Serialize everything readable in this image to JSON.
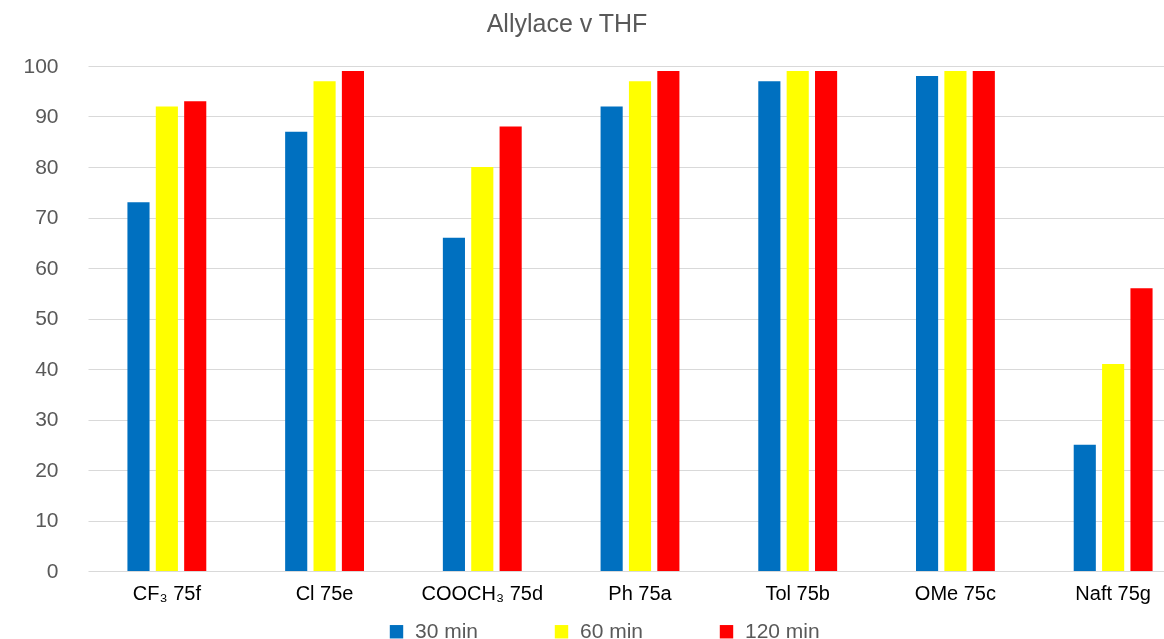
{
  "chart_data": {
    "type": "bar",
    "title": "Allylace v THF",
    "categories": [
      "CF₃ 75f",
      "Cl 75e",
      "COOCH₃ 75d",
      "Ph 75a",
      "Tol 75b",
      "OMe 75c",
      "Naft 75g"
    ],
    "series": [
      {
        "name": "30 min",
        "color": "#0070c0",
        "values": [
          73,
          87,
          66,
          92,
          97,
          98,
          25
        ]
      },
      {
        "name": "60 min",
        "color": "#ffff00",
        "values": [
          92,
          97,
          80,
          97,
          99,
          99,
          41
        ]
      },
      {
        "name": "120 min",
        "color": "#ff0000",
        "values": [
          93,
          99,
          88,
          99,
          99,
          99,
          56
        ]
      }
    ],
    "ylim": [
      0,
      100
    ],
    "yticks": [
      0,
      10,
      20,
      30,
      40,
      50,
      60,
      70,
      80,
      90,
      100
    ],
    "grid": "y",
    "legend": "bottom"
  }
}
